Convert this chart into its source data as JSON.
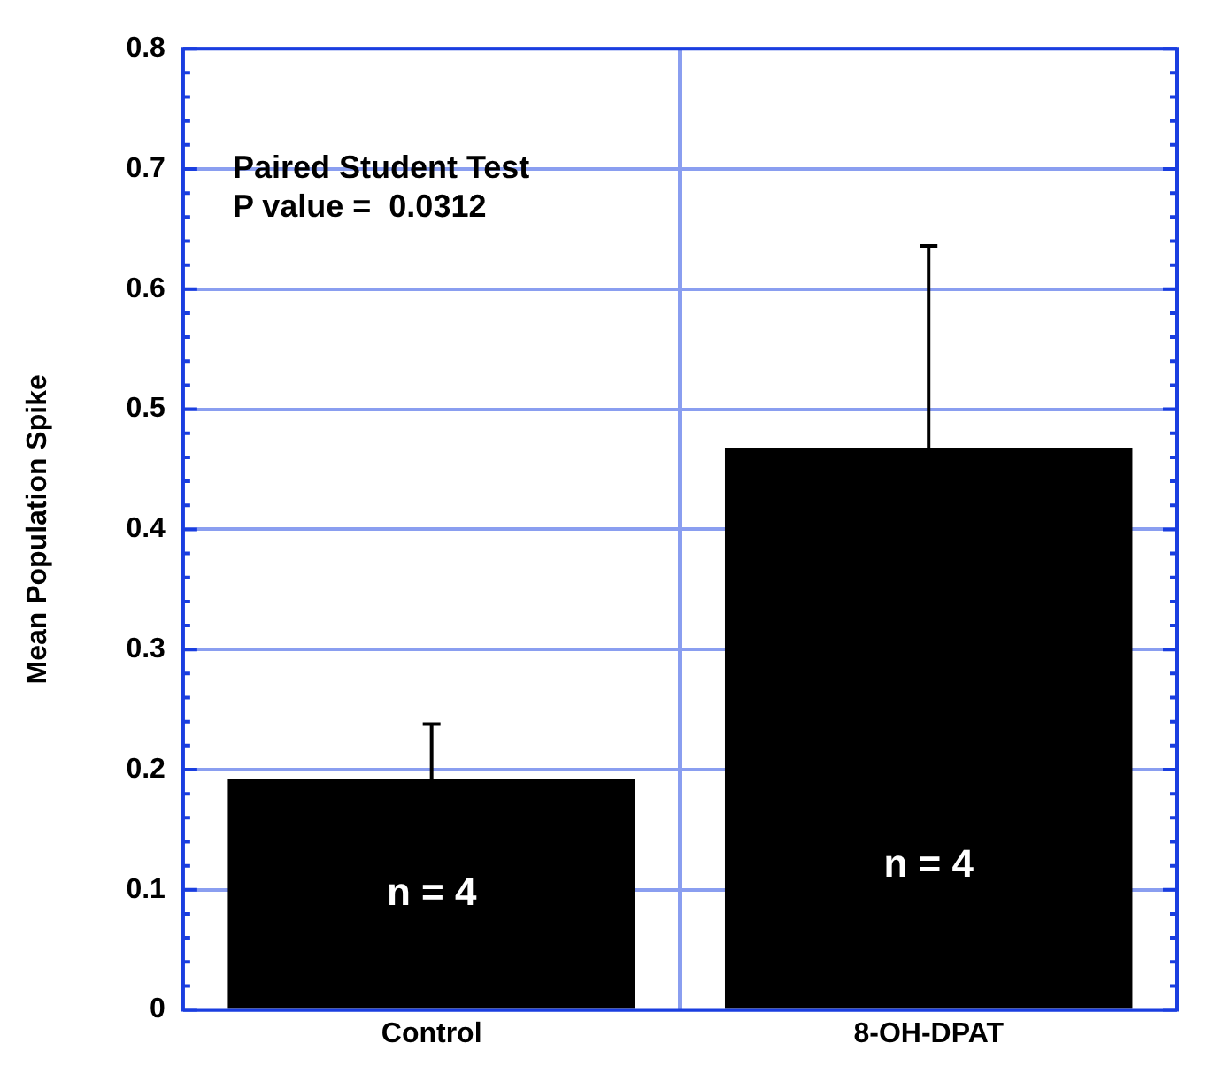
{
  "chart_data": {
    "type": "bar",
    "ylabel": "Mean Population Spike",
    "categories": [
      "Control",
      "8-OH-DPAT"
    ],
    "values": [
      0.192,
      0.468
    ],
    "color": "#000000",
    "errors": [
      [
        0.192,
        0.238
      ],
      [
        0.468,
        0.636
      ]
    ],
    "ylim": [
      0,
      0.8
    ],
    "yticks": [
      0,
      {
        "value": 0.02,
        "label": null
      },
      {
        "value": 0.04,
        "label": null
      },
      {
        "value": 0.06,
        "label": null
      },
      {
        "value": 0.08,
        "label": null
      },
      0.1,
      {
        "value": 0.12,
        "label": null
      },
      {
        "value": 0.14,
        "label": null
      },
      {
        "value": 0.16,
        "label": null
      },
      {
        "value": 0.18,
        "label": null
      },
      0.2,
      {
        "value": 0.22,
        "label": null
      },
      {
        "value": 0.24,
        "label": null
      },
      {
        "value": 0.26,
        "label": null
      },
      {
        "value": 0.28,
        "label": null
      },
      0.3,
      {
        "value": 0.32,
        "label": null
      },
      {
        "value": 0.34,
        "label": null
      },
      {
        "value": 0.36,
        "label": null
      },
      {
        "value": 0.38,
        "label": null
      },
      0.4,
      {
        "value": 0.42,
        "label": null
      },
      {
        "value": 0.44,
        "label": null
      },
      {
        "value": 0.46,
        "label": null
      },
      {
        "value": 0.48,
        "label": null
      },
      0.5,
      {
        "value": 0.52,
        "label": null
      },
      {
        "value": 0.54,
        "label": null
      },
      {
        "value": 0.56,
        "label": null
      },
      {
        "value": 0.58,
        "label": null
      },
      0.6,
      {
        "value": 0.62,
        "label": null
      },
      {
        "value": 0.64,
        "label": null
      },
      {
        "value": 0.66,
        "label": null
      },
      {
        "value": 0.68,
        "label": null
      },
      0.7,
      {
        "value": 0.72,
        "label": null
      },
      {
        "value": 0.74,
        "label": null
      },
      {
        "value": 0.76,
        "label": null
      },
      {
        "value": 0.78,
        "label": null
      },
      0.8
    ],
    "grid": true,
    "annotations": [
      "Paired Student Test",
      "P value =  0.0312",
      "n = 4",
      "n = 4"
    ]
  }
}
